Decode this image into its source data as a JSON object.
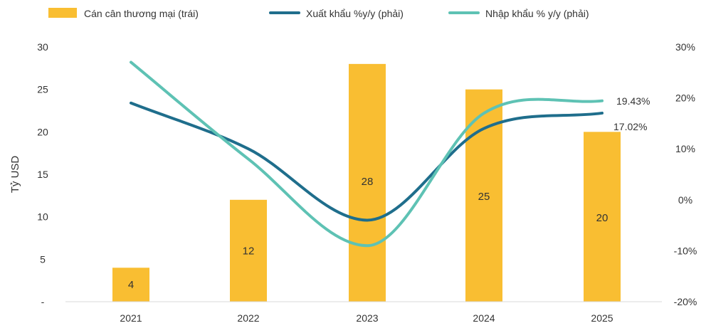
{
  "chart_data": {
    "type": "bar",
    "categories": [
      "2021",
      "2022",
      "2023",
      "2024",
      "2025"
    ],
    "series": [
      {
        "name": "Cán cân thương mại (trái)",
        "type": "bar",
        "axis": "left",
        "color": "#F9BE32",
        "values": [
          4,
          12,
          28,
          25,
          20
        ],
        "labels": [
          "4",
          "12",
          "28",
          "25",
          "20"
        ]
      },
      {
        "name": "Xuất khẩu %y/y (phải)",
        "type": "line",
        "axis": "right",
        "color": "#1F6E8C",
        "values": [
          19,
          10,
          -4,
          14,
          17.02
        ]
      },
      {
        "name": "Nhập khẩu % y/y (phải)",
        "type": "line",
        "axis": "right",
        "color": "#5EC2B4",
        "values": [
          27,
          8,
          -9,
          17,
          19.43
        ]
      }
    ],
    "end_labels": [
      {
        "series": "Nhập khẩu % y/y (phải)",
        "text": "19.43%"
      },
      {
        "series": "Xuất khẩu %y/y (phải)",
        "text": "17.02%"
      }
    ],
    "ylabel": "Tỷ USD",
    "y_left": {
      "min": 0,
      "max": 30,
      "ticks": [
        0,
        5,
        10,
        15,
        20,
        25,
        30
      ],
      "tick_labels": [
        "-",
        "5",
        "10",
        "15",
        "20",
        "25",
        "30"
      ]
    },
    "y_right": {
      "min": -20,
      "max": 30,
      "ticks": [
        -20,
        -10,
        0,
        10,
        20,
        30
      ],
      "tick_labels": [
        "-20%",
        "-10%",
        "0%",
        "10%",
        "20%",
        "30%"
      ]
    },
    "legend_position": "top",
    "grid": false
  }
}
